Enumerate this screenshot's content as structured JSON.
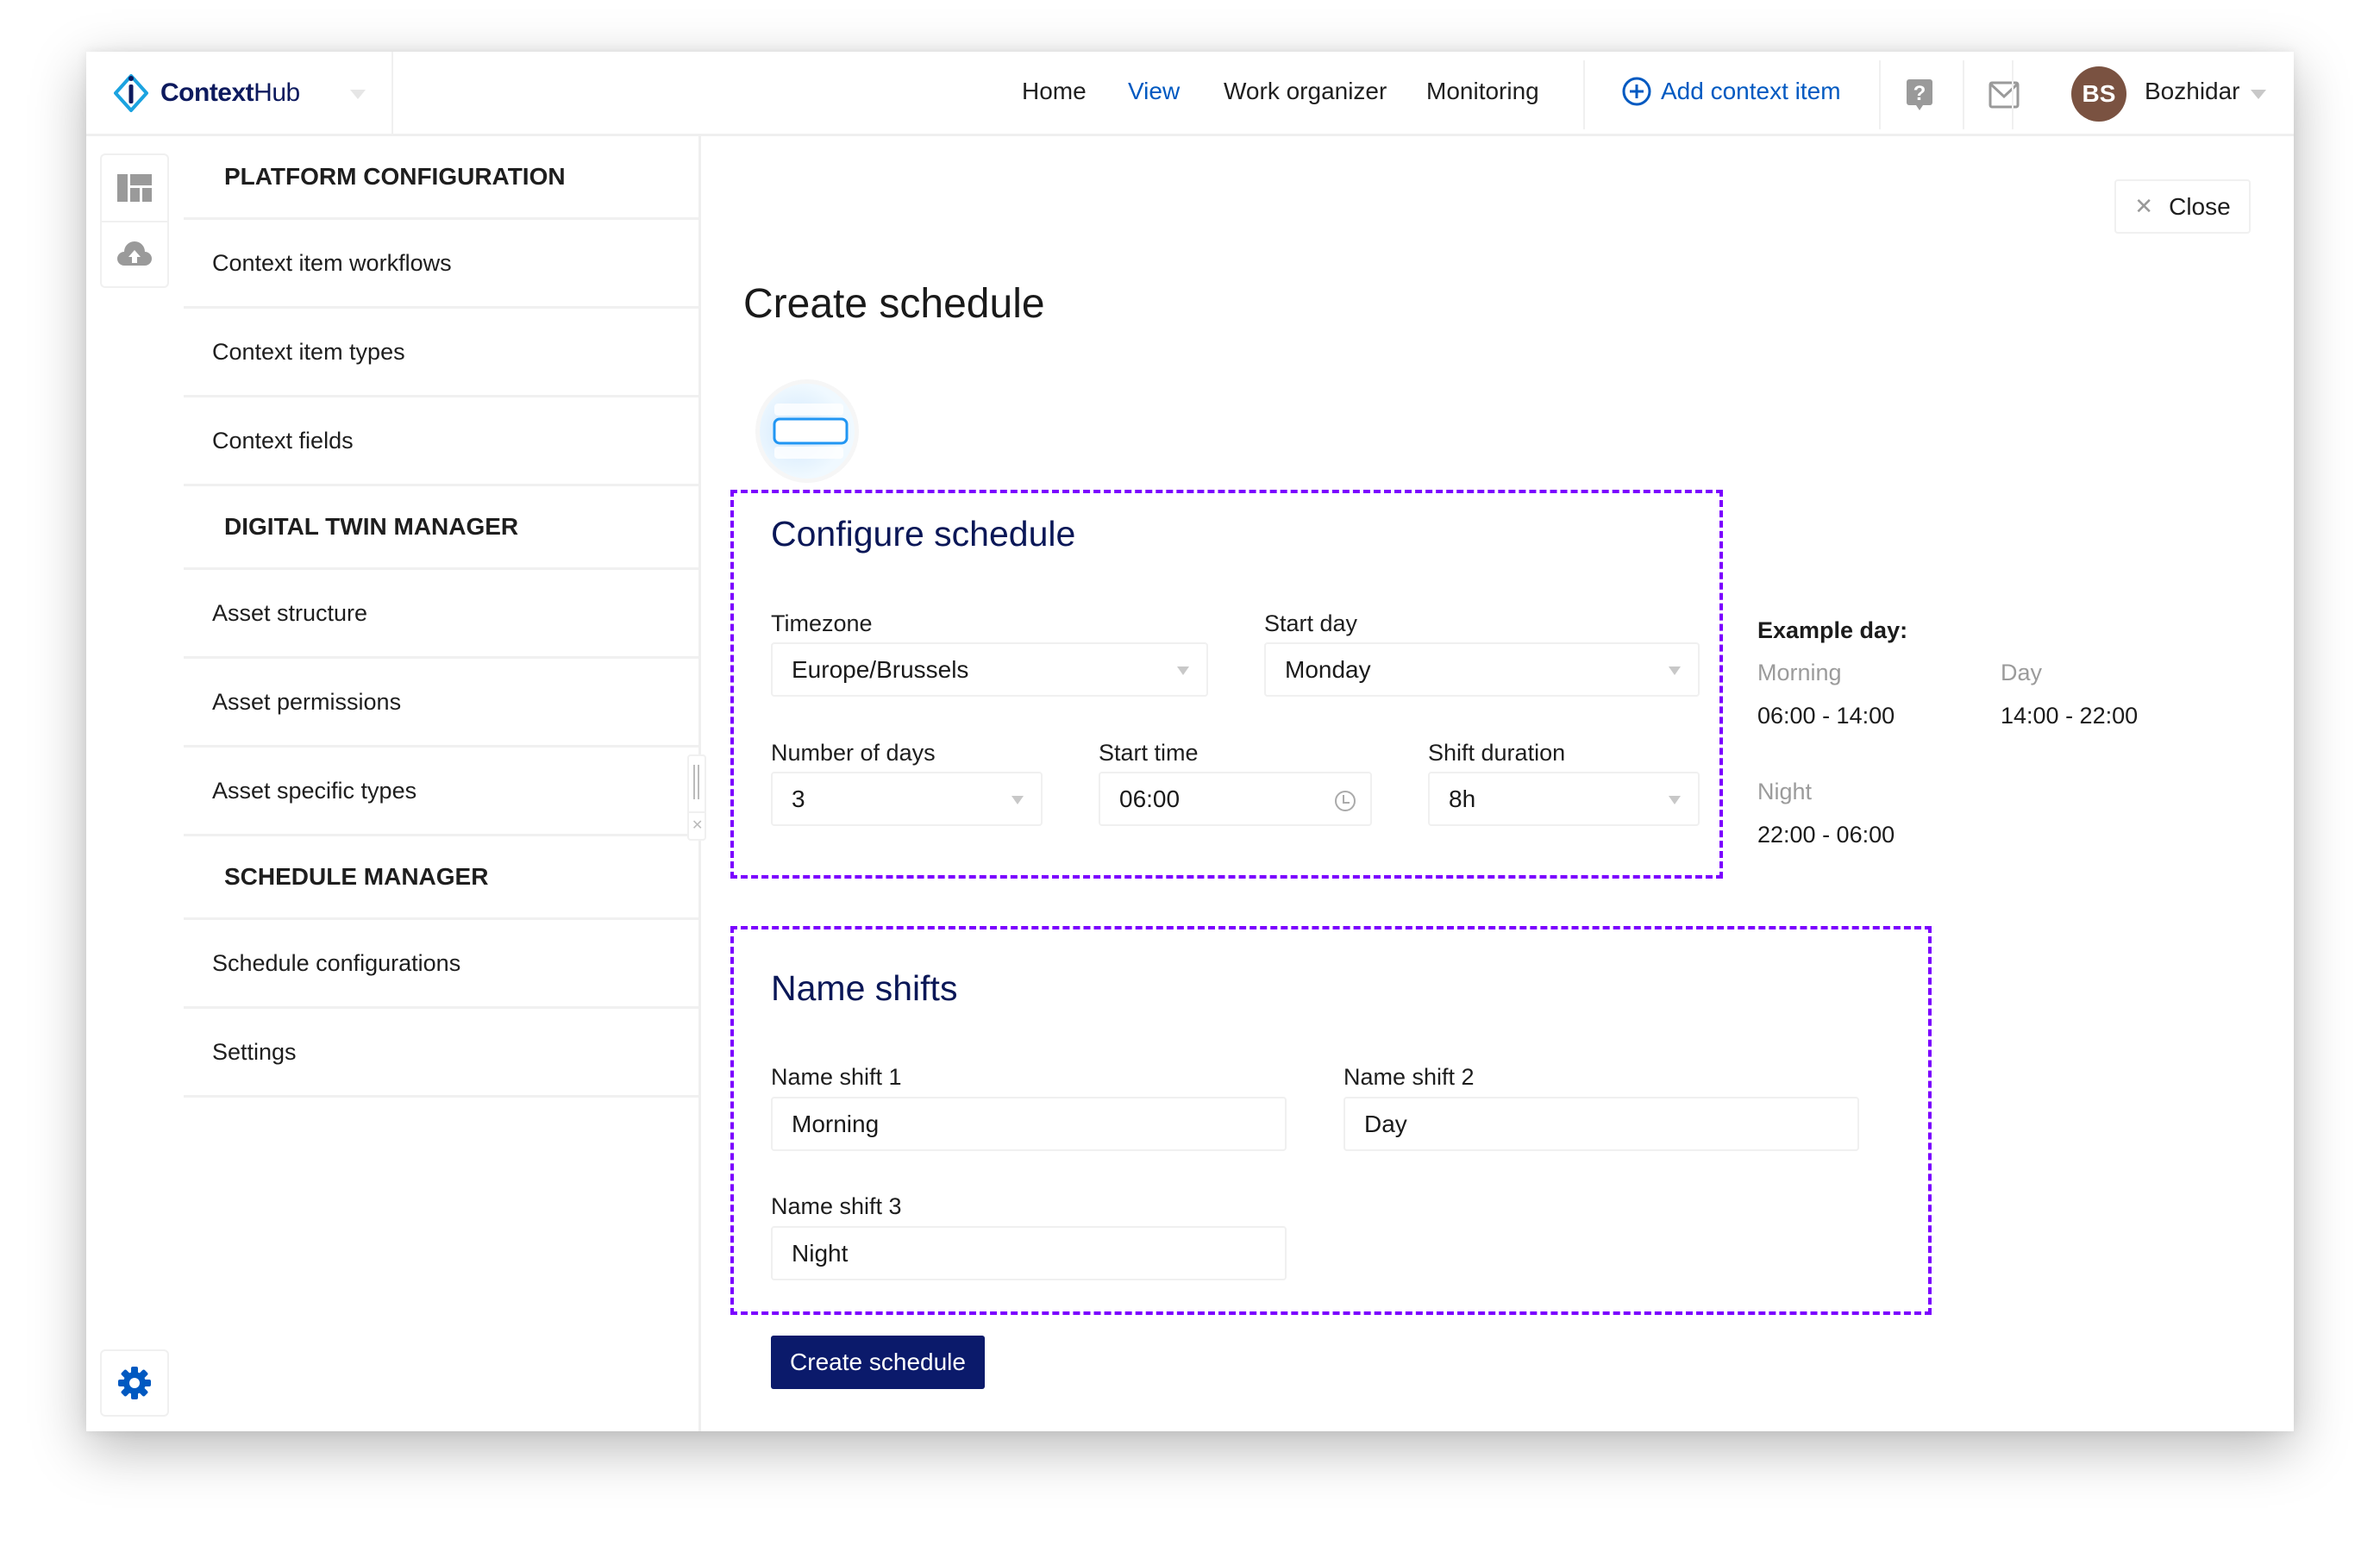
{
  "app": {
    "name_bold": "Context",
    "name_light": "Hub"
  },
  "nav": {
    "items": [
      "Home",
      "View",
      "Work organizer",
      "Monitoring"
    ],
    "active": "View",
    "add_label": "Add context item",
    "user_initials": "BS",
    "user_name": "Bozhidar"
  },
  "colors": {
    "accent": "#0059c1",
    "heading": "#0a1757",
    "primary_button": "#0b1a6b",
    "highlight_border": "#7b00ff",
    "avatar": "#7a5241"
  },
  "sidebar": {
    "sections": [
      {
        "title": "PLATFORM CONFIGURATION",
        "items": [
          "Context item workflows",
          "Context item types",
          "Context fields"
        ]
      },
      {
        "title": "DIGITAL TWIN MANAGER",
        "items": [
          "Asset structure",
          "Asset permissions",
          "Asset specific types"
        ]
      },
      {
        "title": "SCHEDULE MANAGER",
        "items": [
          "Schedule configurations",
          "Settings"
        ]
      }
    ]
  },
  "page": {
    "title": "Create schedule",
    "close_label": "Close"
  },
  "configure": {
    "heading": "Configure schedule",
    "timezone": {
      "label": "Timezone",
      "value": "Europe/Brussels"
    },
    "start_day": {
      "label": "Start day",
      "value": "Monday"
    },
    "num_days": {
      "label": "Number of days",
      "value": "3"
    },
    "start_time": {
      "label": "Start time",
      "value": "06:00"
    },
    "shift_duration": {
      "label": "Shift duration",
      "value": "8h"
    }
  },
  "example": {
    "title": "Example day:",
    "shifts": [
      {
        "name": "Morning",
        "range": "06:00 - 14:00"
      },
      {
        "name": "Day",
        "range": "14:00 - 22:00"
      },
      {
        "name": "Night",
        "range": "22:00 - 06:00"
      }
    ]
  },
  "names": {
    "heading": "Name shifts",
    "shift1": {
      "label": "Name shift 1",
      "value": "Morning"
    },
    "shift2": {
      "label": "Name shift 2",
      "value": "Day"
    },
    "shift3": {
      "label": "Name shift 3",
      "value": "Night"
    }
  },
  "submit_label": "Create schedule"
}
